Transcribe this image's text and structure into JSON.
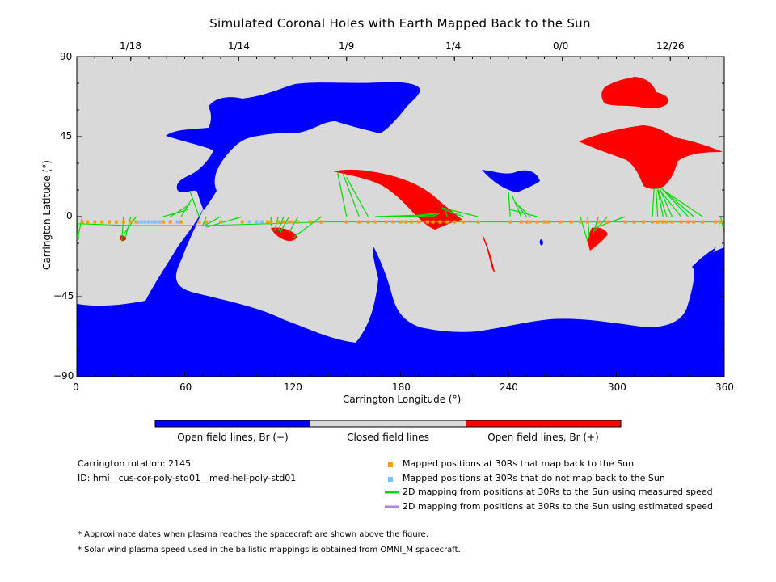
{
  "chart_data": {
    "type": "map",
    "title": "Simulated Coronal Holes with Earth Mapped Back to the Sun",
    "xlabel": "Carrington Longitude (°)",
    "ylabel": "Carrington Latitude (°)",
    "xlim": [
      0,
      360
    ],
    "ylim": [
      -90,
      90
    ],
    "x_ticks": [
      "0",
      "60",
      "120",
      "180",
      "240",
      "300",
      "360"
    ],
    "y_ticks": [
      "90",
      "45",
      "0",
      "−45",
      "−90"
    ],
    "top_date_ticks": [
      {
        "label": "1/18",
        "lon": 30
      },
      {
        "label": "1/14",
        "lon": 90
      },
      {
        "label": "1/9",
        "lon": 150
      },
      {
        "label": "1/4",
        "lon": 210
      },
      {
        "label": "0/0",
        "lon": 270
      },
      {
        "label": "12/26",
        "lon": 330
      }
    ],
    "colors": {
      "open_negative": "#0000ff",
      "closed": "#d9d9d9",
      "open_positive": "#ff0000",
      "mapped": "#f0a000",
      "unmapped": "#7fbfff",
      "measured_line": "#00dd00",
      "estimated_line": "#b084e8"
    },
    "colorbar": {
      "labels": [
        "Open field lines, Br (−)",
        "Closed field lines",
        "Open field lines, Br (+)"
      ]
    },
    "mapped_positions_lon": [
      0,
      3,
      6,
      10,
      14,
      18,
      22,
      26,
      30,
      33,
      48,
      52,
      58,
      68,
      72,
      80,
      92,
      100,
      106,
      108,
      112,
      115,
      118,
      120,
      123,
      130,
      136,
      150,
      157,
      162,
      166,
      172,
      176,
      180,
      183,
      186,
      190,
      195,
      198,
      202,
      206,
      210,
      215,
      223,
      241,
      247,
      250,
      252,
      256,
      260,
      262,
      269,
      275,
      280,
      284,
      290,
      295,
      305,
      310,
      315,
      320,
      323,
      326,
      328,
      331,
      336,
      340,
      343,
      348,
      355,
      358,
      360
    ],
    "unmapped_positions_lon": [
      34,
      36,
      38,
      40,
      42,
      44,
      46,
      56,
      96,
      100,
      103
    ],
    "measured_mappings": [
      {
        "from_lon": 0,
        "to": [
          1,
          -13
        ]
      },
      {
        "from_lon": 3,
        "to": [
          1,
          -10
        ]
      },
      {
        "from_lon": 26,
        "to": [
          25,
          -14
        ]
      },
      {
        "from_lon": 30,
        "to": [
          27,
          -12
        ]
      },
      {
        "from_lon": 33,
        "to": [
          26,
          -10
        ]
      },
      {
        "from_lon": 48,
        "to": [
          62,
          4
        ]
      },
      {
        "from_lon": 52,
        "to": [
          63,
          7
        ]
      },
      {
        "from_lon": 58,
        "to": [
          64,
          10
        ]
      },
      {
        "from_lon": 68,
        "to": [
          63,
          14
        ]
      },
      {
        "from_lon": 72,
        "to": [
          70,
          -5
        ]
      },
      {
        "from_lon": 80,
        "to": [
          71,
          -5
        ]
      },
      {
        "from_lon": 92,
        "to": [
          72,
          -6
        ]
      },
      {
        "from_lon": 108,
        "to": [
          108,
          -5
        ]
      },
      {
        "from_lon": 112,
        "to": [
          110,
          -8
        ]
      },
      {
        "from_lon": 115,
        "to": [
          112,
          -8
        ]
      },
      {
        "from_lon": 118,
        "to": [
          113,
          -9
        ]
      },
      {
        "from_lon": 123,
        "to": [
          118,
          -9
        ]
      },
      {
        "from_lon": 136,
        "to": [
          120,
          -12
        ]
      },
      {
        "from_lon": 150,
        "to": [
          145,
          25
        ]
      },
      {
        "from_lon": 157,
        "to": [
          148,
          24
        ]
      },
      {
        "from_lon": 162,
        "to": [
          150,
          22
        ]
      },
      {
        "from_lon": 166,
        "to": [
          195,
          1
        ]
      },
      {
        "from_lon": 172,
        "to": [
          198,
          0
        ]
      },
      {
        "from_lon": 176,
        "to": [
          199,
          1
        ]
      },
      {
        "from_lon": 183,
        "to": [
          200,
          2
        ]
      },
      {
        "from_lon": 190,
        "to": [
          201,
          2
        ]
      },
      {
        "from_lon": 198,
        "to": [
          202,
          2
        ]
      },
      {
        "from_lon": 206,
        "to": [
          205,
          3
        ]
      },
      {
        "from_lon": 215,
        "to": [
          204,
          4
        ]
      },
      {
        "from_lon": 223,
        "to": [
          203,
          5
        ]
      },
      {
        "from_lon": 241,
        "to": [
          240,
          14
        ]
      },
      {
        "from_lon": 247,
        "to": [
          242,
          12
        ]
      },
      {
        "from_lon": 250,
        "to": [
          244,
          8
        ]
      },
      {
        "from_lon": 252,
        "to": [
          246,
          6
        ]
      },
      {
        "from_lon": 256,
        "to": [
          241,
          4
        ]
      },
      {
        "from_lon": 280,
        "to": [
          284,
          -14
        ]
      },
      {
        "from_lon": 284,
        "to": [
          285,
          -12
        ]
      },
      {
        "from_lon": 290,
        "to": [
          287,
          -10
        ]
      },
      {
        "from_lon": 295,
        "to": [
          288,
          -8
        ]
      },
      {
        "from_lon": 305,
        "to": [
          289,
          -6
        ]
      },
      {
        "from_lon": 320,
        "to": [
          321,
          16
        ]
      },
      {
        "from_lon": 323,
        "to": [
          322,
          16
        ]
      },
      {
        "from_lon": 326,
        "to": [
          323,
          15
        ]
      },
      {
        "from_lon": 328,
        "to": [
          323,
          16
        ]
      },
      {
        "from_lon": 331,
        "to": [
          324,
          16
        ]
      },
      {
        "from_lon": 336,
        "to": [
          324,
          15
        ]
      },
      {
        "from_lon": 340,
        "to": [
          325,
          16
        ]
      },
      {
        "from_lon": 343,
        "to": [
          325,
          16
        ]
      },
      {
        "from_lon": 348,
        "to": [
          326,
          15
        ]
      },
      {
        "from_lon": 358,
        "to": [
          360,
          -9
        ]
      }
    ]
  },
  "info": {
    "carrington_rotation": "Carrington rotation: 2145",
    "id": "ID: hmi__cus-cor-poly-std01__med-hel-poly-std01"
  },
  "legend": [
    {
      "marker": "mapped-square",
      "text": "Mapped positions at 30Rs that map back to the Sun"
    },
    {
      "marker": "unmapped-square",
      "text": "Mapped positions at 30Rs that do not map back to the Sun"
    },
    {
      "marker": "measured-line",
      "text": "2D mapping from positions at 30Rs to the Sun using measured speed"
    },
    {
      "marker": "estimated-line",
      "text": "2D mapping from positions at 30Rs to the Sun using estimated speed"
    }
  ],
  "notes": [
    "* Approximate dates when plasma reaches the spacecraft are shown above the figure.",
    "* Solar wind plasma speed used in the ballistic mappings is obtained from OMNI_M spacecraft."
  ]
}
